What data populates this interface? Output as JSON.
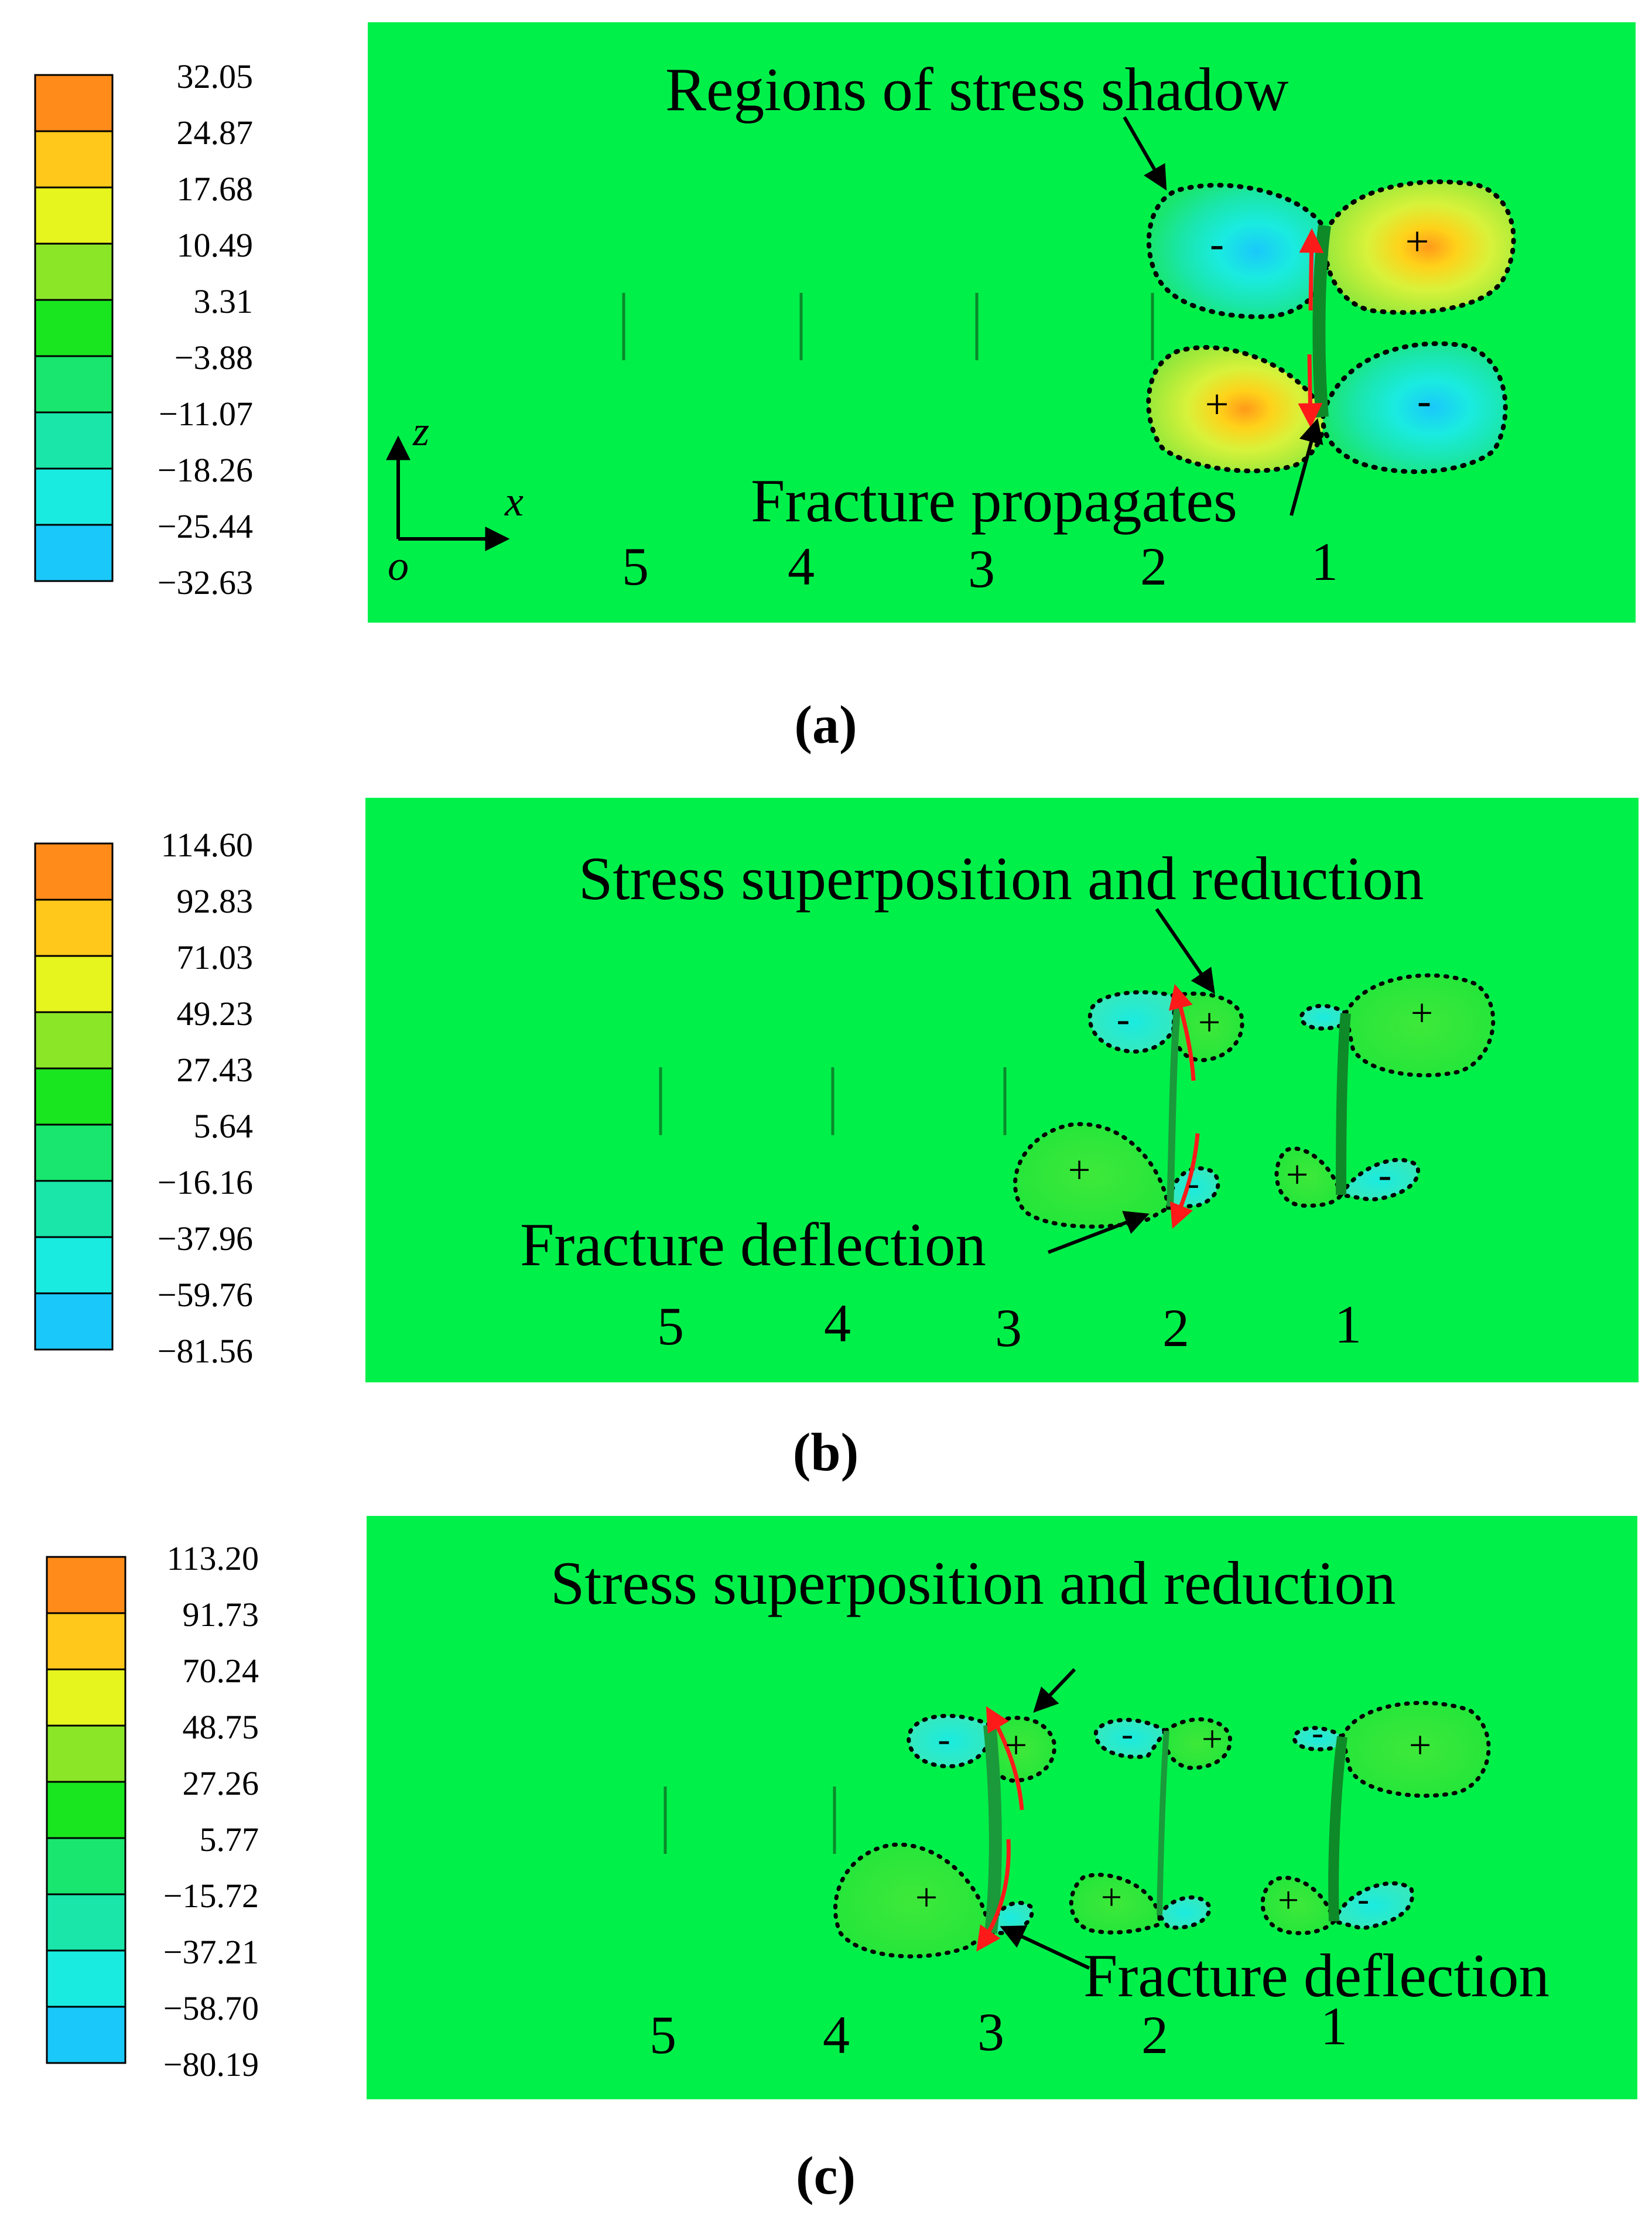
{
  "colors": {
    "field": "#00F04A",
    "legend": [
      "#FF8C1A",
      "#FFC81A",
      "#E6F51E",
      "#8CE628",
      "#19E61E",
      "#19E66E",
      "#1AE6AA",
      "#1AEBE0",
      "#1AC8FA"
    ],
    "positive": "#C0F06A",
    "negative": "#40E8D0",
    "arrow_red": "#FF1A1A"
  },
  "panels": [
    {
      "caption": "(a)",
      "legend_values": [
        "32.05",
        "24.87",
        "17.68",
        "10.49",
        "3.31",
        "−3.88",
        "−11.07",
        "−18.26",
        "−25.44",
        "−32.63"
      ],
      "annotations": [
        "Regions of stress shadow",
        "Fracture propagates"
      ],
      "fracture_labels": [
        "5",
        "4",
        "3",
        "2",
        "1"
      ],
      "axes": {
        "z": "z",
        "x": "x",
        "origin": "o"
      },
      "signs": [
        "-",
        "+",
        "+",
        "-"
      ]
    },
    {
      "caption": "(b)",
      "legend_values": [
        "114.60",
        "92.83",
        "71.03",
        "49.23",
        "27.43",
        "5.64",
        "−16.16",
        "−37.96",
        "−59.76",
        "−81.56"
      ],
      "annotations": [
        "Stress superposition and reduction",
        "Fracture deflection"
      ],
      "fracture_labels": [
        "5",
        "4",
        "3",
        "2",
        "1"
      ],
      "signs": [
        "-",
        "+",
        "+",
        "-",
        "+",
        "+",
        "-"
      ]
    },
    {
      "caption": "(c)",
      "legend_values": [
        "113.20",
        "91.73",
        "70.24",
        "48.75",
        "27.26",
        "5.77",
        "−15.72",
        "−37.21",
        "−58.70",
        "−80.19"
      ],
      "annotations": [
        "Stress superposition and reduction",
        "Fracture deflection"
      ],
      "fracture_labels": [
        "5",
        "4",
        "3",
        "2",
        "1"
      ],
      "signs": [
        "-",
        "+",
        "+",
        "-",
        "+",
        "+",
        "-",
        "+",
        "+",
        "-"
      ]
    }
  ]
}
